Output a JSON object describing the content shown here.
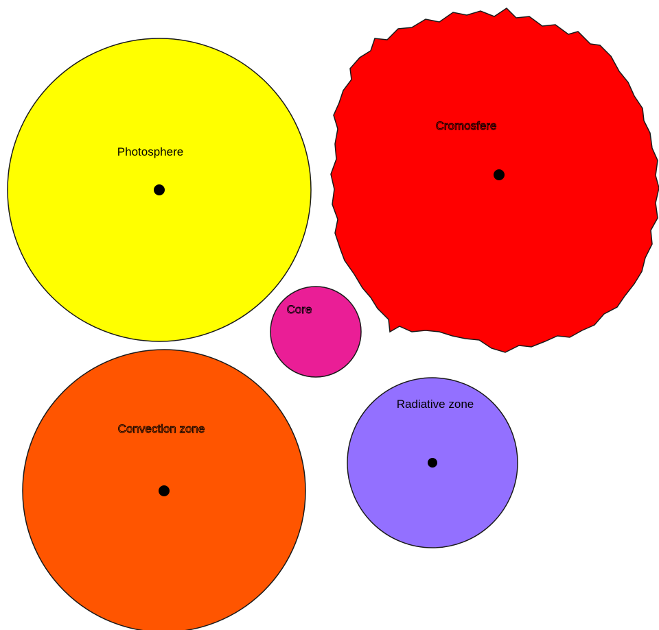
{
  "diagram": {
    "background": "#ffffff",
    "layers": [
      {
        "id": "photosphere",
        "label": "Photosphere",
        "fill": "#ffff00",
        "shape": "circle",
        "has_dot": true
      },
      {
        "id": "cromosfere",
        "label": "Cromosfere",
        "fill": "#ff0000",
        "shape": "jagged-circle",
        "has_dot": true
      },
      {
        "id": "core",
        "label": "Core",
        "fill": "#ea1e96",
        "shape": "circle",
        "has_dot": false
      },
      {
        "id": "convection",
        "label": "Convection zone",
        "fill": "#ff5500",
        "shape": "circle",
        "has_dot": true
      },
      {
        "id": "radiative",
        "label": "Radiative zone",
        "fill": "#9370ff",
        "shape": "circle",
        "has_dot": true
      }
    ]
  }
}
